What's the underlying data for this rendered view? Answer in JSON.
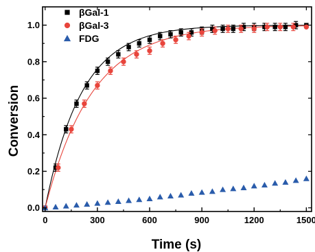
{
  "chart_data": {
    "type": "scatter",
    "xlabel": "Time (s)",
    "ylabel": "Conversion",
    "xlim": [
      -15,
      1530
    ],
    "ylim": [
      -0.02,
      1.1
    ],
    "xticks": [
      "0",
      "300",
      "600",
      "900",
      "1200",
      "1500"
    ],
    "yticks": [
      "0.0",
      "0.2",
      "0.4",
      "0.6",
      "0.8",
      "1.0"
    ],
    "legend_position": "top-left",
    "series": [
      {
        "name": "βGal-1",
        "color": "#000000",
        "marker": "square",
        "fit": true,
        "fit_k": 0.00475,
        "x": [
          0,
          60,
          120,
          180,
          240,
          300,
          360,
          420,
          480,
          540,
          600,
          660,
          720,
          780,
          840,
          900,
          960,
          1020,
          1080,
          1140,
          1200,
          1260,
          1320,
          1380,
          1440,
          1500
        ],
        "y": [
          0.0,
          0.22,
          0.43,
          0.57,
          0.67,
          0.75,
          0.8,
          0.84,
          0.88,
          0.9,
          0.92,
          0.94,
          0.95,
          0.96,
          0.96,
          0.97,
          0.98,
          0.98,
          0.98,
          0.99,
          0.99,
          0.99,
          0.99,
          0.99,
          1.0,
          1.0
        ]
      },
      {
        "name": "βGal-3",
        "color": "#e8453c",
        "marker": "circle",
        "fit": true,
        "fit_k": 0.0037,
        "x": [
          0,
          75,
          150,
          225,
          300,
          375,
          450,
          525,
          600,
          675,
          750,
          825,
          900,
          975,
          1050,
          1125,
          1200,
          1275,
          1350,
          1425,
          1500
        ],
        "y": [
          0.0,
          0.22,
          0.43,
          0.57,
          0.67,
          0.75,
          0.8,
          0.84,
          0.86,
          0.9,
          0.92,
          0.94,
          0.96,
          0.97,
          0.98,
          0.98,
          0.98,
          0.99,
          0.99,
          0.99,
          0.99
        ]
      },
      {
        "name": "FDG",
        "color": "#2a5cab",
        "marker": "triangle",
        "fit": false,
        "x": [
          0,
          60,
          120,
          180,
          240,
          300,
          360,
          420,
          480,
          540,
          600,
          660,
          720,
          780,
          840,
          900,
          960,
          1020,
          1080,
          1140,
          1200,
          1260,
          1320,
          1380,
          1440,
          1500
        ],
        "y": [
          0.0,
          0.005,
          0.01,
          0.015,
          0.02,
          0.025,
          0.03,
          0.035,
          0.04,
          0.045,
          0.05,
          0.06,
          0.065,
          0.07,
          0.08,
          0.085,
          0.09,
          0.1,
          0.105,
          0.11,
          0.12,
          0.125,
          0.135,
          0.14,
          0.15,
          0.16
        ]
      }
    ]
  }
}
